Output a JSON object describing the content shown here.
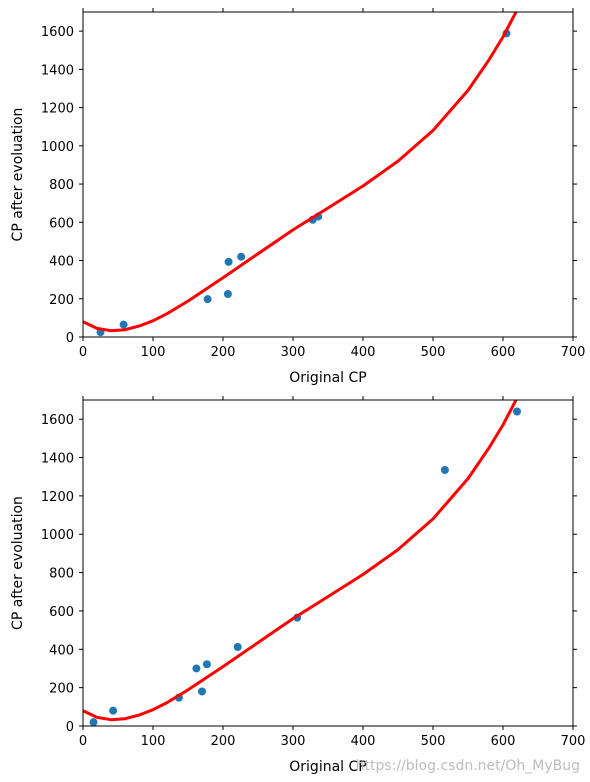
{
  "chart_data": [
    {
      "type": "scatter",
      "xlabel": "Original CP",
      "ylabel": "CP after evoluation",
      "xlim": [
        0,
        700
      ],
      "ylim": [
        0,
        1700
      ],
      "xticks": [
        0,
        100,
        200,
        300,
        400,
        500,
        600,
        700
      ],
      "yticks": [
        0,
        200,
        400,
        600,
        800,
        1000,
        1200,
        1400,
        1600
      ],
      "grid": false,
      "points_color": "#1f77b4",
      "curve_color": "#ff0000",
      "points": [
        {
          "x": 25,
          "y": 25
        },
        {
          "x": 58,
          "y": 65
        },
        {
          "x": 178,
          "y": 198
        },
        {
          "x": 207,
          "y": 225
        },
        {
          "x": 208,
          "y": 393
        },
        {
          "x": 226,
          "y": 420
        },
        {
          "x": 328,
          "y": 613
        },
        {
          "x": 336,
          "y": 630
        },
        {
          "x": 605,
          "y": 1588
        }
      ],
      "curve": [
        {
          "x": 0,
          "y": 80
        },
        {
          "x": 20,
          "y": 45
        },
        {
          "x": 40,
          "y": 33
        },
        {
          "x": 60,
          "y": 38
        },
        {
          "x": 80,
          "y": 57
        },
        {
          "x": 100,
          "y": 85
        },
        {
          "x": 120,
          "y": 122
        },
        {
          "x": 150,
          "y": 188
        },
        {
          "x": 200,
          "y": 310
        },
        {
          "x": 250,
          "y": 435
        },
        {
          "x": 300,
          "y": 560
        },
        {
          "x": 350,
          "y": 675
        },
        {
          "x": 400,
          "y": 790
        },
        {
          "x": 450,
          "y": 920
        },
        {
          "x": 500,
          "y": 1080
        },
        {
          "x": 550,
          "y": 1290
        },
        {
          "x": 580,
          "y": 1450
        },
        {
          "x": 600,
          "y": 1570
        },
        {
          "x": 620,
          "y": 1710
        }
      ]
    },
    {
      "type": "scatter",
      "xlabel": "Original CP",
      "ylabel": "CP after evoluation",
      "xlim": [
        0,
        700
      ],
      "ylim": [
        0,
        1700
      ],
      "xticks": [
        0,
        100,
        200,
        300,
        400,
        500,
        600,
        700
      ],
      "yticks": [
        0,
        200,
        400,
        600,
        800,
        1000,
        1200,
        1400,
        1600
      ],
      "grid": false,
      "points_color": "#1f77b4",
      "curve_color": "#ff0000",
      "points": [
        {
          "x": 15,
          "y": 20
        },
        {
          "x": 43,
          "y": 80
        },
        {
          "x": 137,
          "y": 148
        },
        {
          "x": 162,
          "y": 300
        },
        {
          "x": 170,
          "y": 180
        },
        {
          "x": 177,
          "y": 322
        },
        {
          "x": 221,
          "y": 412
        },
        {
          "x": 306,
          "y": 565
        },
        {
          "x": 517,
          "y": 1335
        },
        {
          "x": 620,
          "y": 1640
        }
      ],
      "curve": [
        {
          "x": 0,
          "y": 80
        },
        {
          "x": 20,
          "y": 45
        },
        {
          "x": 40,
          "y": 33
        },
        {
          "x": 60,
          "y": 38
        },
        {
          "x": 80,
          "y": 57
        },
        {
          "x": 100,
          "y": 85
        },
        {
          "x": 120,
          "y": 122
        },
        {
          "x": 150,
          "y": 188
        },
        {
          "x": 200,
          "y": 310
        },
        {
          "x": 250,
          "y": 435
        },
        {
          "x": 300,
          "y": 560
        },
        {
          "x": 350,
          "y": 675
        },
        {
          "x": 400,
          "y": 790
        },
        {
          "x": 450,
          "y": 920
        },
        {
          "x": 500,
          "y": 1080
        },
        {
          "x": 550,
          "y": 1290
        },
        {
          "x": 580,
          "y": 1450
        },
        {
          "x": 600,
          "y": 1570
        },
        {
          "x": 620,
          "y": 1710
        }
      ]
    }
  ],
  "watermark": "https://blog.csdn.net/Oh_MyBug"
}
